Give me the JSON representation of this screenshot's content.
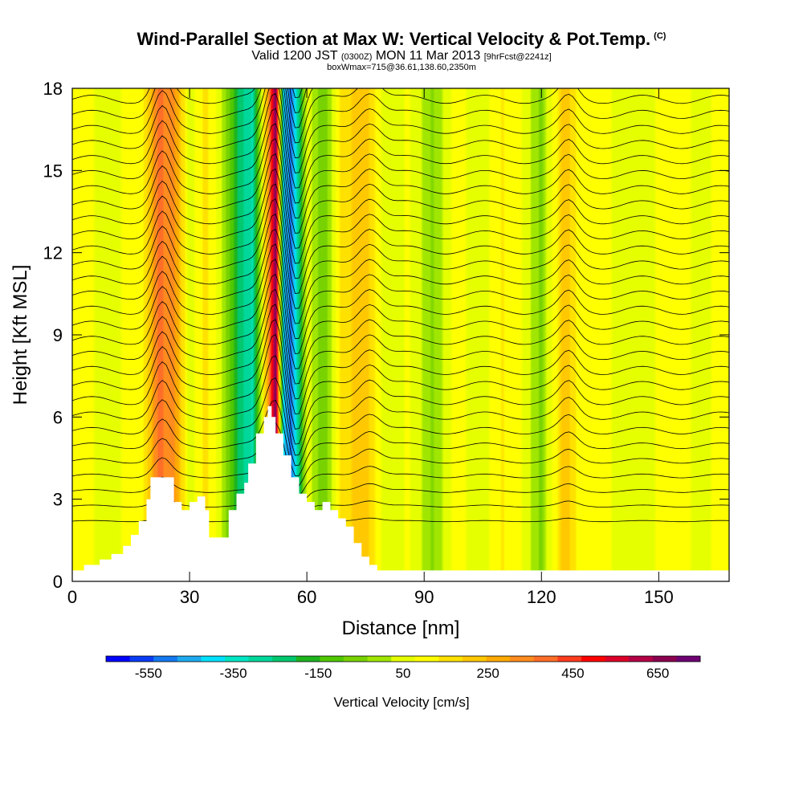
{
  "header": {
    "title": "Wind-Parallel Section at Max W: Vertical Velocity & Pot.Temp.",
    "copyright": "(C)",
    "valid_prefix": "Valid 1200 JST",
    "valid_zulu": "(0300Z)",
    "valid_date": "MON 11 Mar 2013",
    "forecast": "[9hrFcst@2241z]",
    "box_info": "boxWmax=715@36.61,138.60,2350m"
  },
  "chart_data": {
    "type": "heatmap",
    "xlabel": "Distance [nm]",
    "ylabel": "Height [Kft MSL]",
    "xlim": [
      0,
      168
    ],
    "ylim": [
      0,
      18
    ],
    "x_ticks": [
      0,
      30,
      60,
      90,
      120,
      150
    ],
    "y_ticks": [
      0,
      3,
      6,
      9,
      12,
      15,
      18
    ],
    "colorbar": {
      "label": "Vertical Velocity [cm/s]",
      "tick_labels": [
        -550,
        -350,
        -150,
        50,
        250,
        450,
        650
      ],
      "range": [
        -650,
        750
      ],
      "colors": [
        "#0000ff",
        "#0a3cf5",
        "#1478f0",
        "#1eaaf0",
        "#00e1ff",
        "#00e6c3",
        "#00d79b",
        "#00c86e",
        "#1eb41e",
        "#50c800",
        "#78d200",
        "#a0e600",
        "#e6ff00",
        "#ffff00",
        "#ffe100",
        "#ffc800",
        "#ffaa00",
        "#ff8c1e",
        "#ff6e28",
        "#ff3c1e",
        "#ff0000",
        "#dc0028",
        "#b40046",
        "#8c0050",
        "#6e0073"
      ]
    },
    "w_columns": [
      {
        "x": 2,
        "w": 90
      },
      {
        "x": 10,
        "w": 60
      },
      {
        "x": 18,
        "w": 110
      },
      {
        "x": 22,
        "w": 380
      },
      {
        "x": 26,
        "w": 320
      },
      {
        "x": 30,
        "w": 40
      },
      {
        "x": 34,
        "w": 160
      },
      {
        "x": 38,
        "w": 30
      },
      {
        "x": 42,
        "w": -200
      },
      {
        "x": 46,
        "w": -330
      },
      {
        "x": 50,
        "w": 300
      },
      {
        "x": 52,
        "w": 715
      },
      {
        "x": 54,
        "w": -400
      },
      {
        "x": 56,
        "w": -520
      },
      {
        "x": 60,
        "w": 60
      },
      {
        "x": 64,
        "w": -90
      },
      {
        "x": 68,
        "w": 120
      },
      {
        "x": 74,
        "w": 240
      },
      {
        "x": 80,
        "w": 40
      },
      {
        "x": 86,
        "w": 90
      },
      {
        "x": 92,
        "w": -40
      },
      {
        "x": 98,
        "w": 110
      },
      {
        "x": 104,
        "w": 30
      },
      {
        "x": 110,
        "w": 140
      },
      {
        "x": 116,
        "w": 60
      },
      {
        "x": 120,
        "w": -50
      },
      {
        "x": 126,
        "w": 240
      },
      {
        "x": 130,
        "w": 80
      },
      {
        "x": 136,
        "w": 100
      },
      {
        "x": 142,
        "w": 40
      },
      {
        "x": 148,
        "w": 70
      },
      {
        "x": 154,
        "w": 120
      },
      {
        "x": 160,
        "w": 60
      },
      {
        "x": 166,
        "w": 90
      }
    ],
    "terrain": [
      {
        "x": 0,
        "h": 0.4
      },
      {
        "x": 3,
        "h": 0.6
      },
      {
        "x": 7,
        "h": 0.8
      },
      {
        "x": 10,
        "h": 1.0
      },
      {
        "x": 13,
        "h": 1.3
      },
      {
        "x": 15,
        "h": 1.7
      },
      {
        "x": 17,
        "h": 2.2
      },
      {
        "x": 19,
        "h": 3.0
      },
      {
        "x": 20,
        "h": 3.8
      },
      {
        "x": 25,
        "h": 3.8
      },
      {
        "x": 26,
        "h": 2.9
      },
      {
        "x": 28,
        "h": 2.6
      },
      {
        "x": 30,
        "h": 2.9
      },
      {
        "x": 32,
        "h": 3.1
      },
      {
        "x": 34,
        "h": 2.6
      },
      {
        "x": 35,
        "h": 1.6
      },
      {
        "x": 39,
        "h": 1.6
      },
      {
        "x": 40,
        "h": 2.6
      },
      {
        "x": 42,
        "h": 3.2
      },
      {
        "x": 44,
        "h": 3.6
      },
      {
        "x": 45,
        "h": 4.3
      },
      {
        "x": 47,
        "h": 5.4
      },
      {
        "x": 49,
        "h": 6.0
      },
      {
        "x": 50,
        "h": 6.4
      },
      {
        "x": 51,
        "h": 6.0
      },
      {
        "x": 52,
        "h": 5.4
      },
      {
        "x": 54,
        "h": 4.6
      },
      {
        "x": 56,
        "h": 3.8
      },
      {
        "x": 58,
        "h": 3.2
      },
      {
        "x": 60,
        "h": 2.9
      },
      {
        "x": 62,
        "h": 2.6
      },
      {
        "x": 64,
        "h": 2.9
      },
      {
        "x": 66,
        "h": 2.6
      },
      {
        "x": 68,
        "h": 2.3
      },
      {
        "x": 70,
        "h": 2.0
      },
      {
        "x": 72,
        "h": 1.4
      },
      {
        "x": 74,
        "h": 0.9
      },
      {
        "x": 76,
        "h": 0.6
      },
      {
        "x": 78,
        "h": 0.4
      },
      {
        "x": 168,
        "h": 0.4
      }
    ]
  }
}
